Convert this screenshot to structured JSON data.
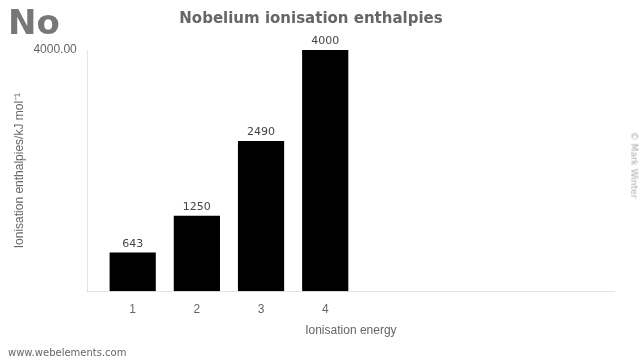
{
  "chart_data": {
    "type": "bar",
    "title": "Nobelium ionisation enthalpies",
    "x": [
      1,
      2,
      3,
      4
    ],
    "values": [
      643,
      1250,
      2490,
      4000
    ],
    "color": "#000000",
    "xlabel": "Ionisation energy",
    "ylabel": "Ionisation enthalpies/kJ mol⁻¹",
    "xlim": [
      0.3,
      8.5
    ],
    "xticks": [
      1,
      2,
      3,
      4
    ],
    "ylim": [
      0,
      4000
    ],
    "yticks": [
      {
        "value": 4000,
        "label": "4000.00"
      }
    ],
    "grid": false,
    "data_labels": true,
    "annotations": [
      "No",
      "© Mark Winter",
      "www.webelements.com"
    ]
  }
}
